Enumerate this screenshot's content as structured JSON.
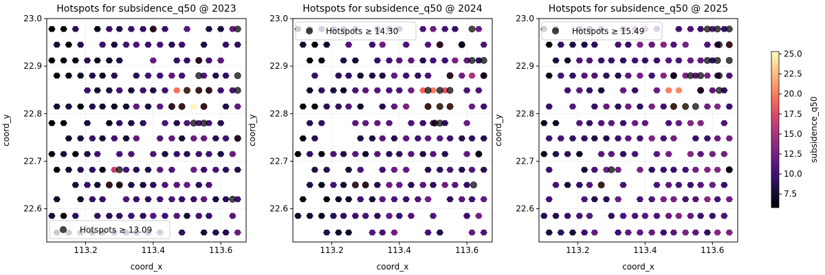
{
  "chart_data": [
    {
      "type": "hexbin",
      "title": "Hotspots for subsidence_q50 @ 2023",
      "xlabel": "coord_x",
      "ylabel": "coord_y",
      "xlim": [
        113.085,
        113.675
      ],
      "ylim": [
        22.53,
        23.0
      ],
      "xticks": [
        113.2,
        113.4,
        113.6
      ],
      "xtick_labels": [
        "113.2",
        "113.4",
        "113.6"
      ],
      "yticks": [
        22.6,
        22.7,
        22.8,
        22.9,
        23.0
      ],
      "ytick_labels": [
        "22.6",
        "22.7",
        "22.8",
        "22.9",
        "23.0"
      ],
      "grid": true,
      "legend": {
        "label": "Hotspots ≥ 13.09",
        "placement": "lower-left"
      },
      "hotspot_threshold": 13.09,
      "seed": 11,
      "base_level": 9.8,
      "hot_cells": [
        {
          "x": 113.47,
          "y": 22.849,
          "v": 19.5
        },
        {
          "x": 113.5,
          "y": 22.849,
          "v": 21.0
        },
        {
          "x": 113.535,
          "y": 22.849,
          "v": 18.5
        },
        {
          "x": 113.565,
          "y": 22.849,
          "v": 17.0
        },
        {
          "x": 113.63,
          "y": 22.849,
          "v": 15.0
        },
        {
          "x": 113.455,
          "y": 22.815,
          "v": 16.5
        },
        {
          "x": 113.485,
          "y": 22.815,
          "v": 18.0
        },
        {
          "x": 113.52,
          "y": 22.815,
          "v": 25.0
        },
        {
          "x": 113.55,
          "y": 22.815,
          "v": 17.0
        },
        {
          "x": 113.52,
          "y": 22.78,
          "v": 16.0
        },
        {
          "x": 113.55,
          "y": 22.78,
          "v": 15.5
        },
        {
          "x": 113.535,
          "y": 22.912,
          "v": 14.5
        },
        {
          "x": 113.65,
          "y": 22.88,
          "v": 14.8
        },
        {
          "x": 113.285,
          "y": 22.682,
          "v": 16.5
        },
        {
          "x": 113.27,
          "y": 22.65,
          "v": 17.0
        },
        {
          "x": 113.3,
          "y": 22.65,
          "v": 14.0
        },
        {
          "x": 113.65,
          "y": 22.748,
          "v": 14.0
        },
        {
          "x": 113.635,
          "y": 22.62,
          "v": 14.2
        },
        {
          "x": 113.4,
          "y": 22.978,
          "v": 14.0
        },
        {
          "x": 113.65,
          "y": 22.978,
          "v": 14.5
        }
      ],
      "hotspots_xy": [
        [
          113.4,
          22.978
        ],
        [
          113.65,
          22.978
        ],
        [
          113.535,
          22.912
        ],
        [
          113.535,
          22.88
        ],
        [
          113.65,
          22.88
        ],
        [
          113.5,
          22.849
        ],
        [
          113.535,
          22.849
        ],
        [
          113.565,
          22.849
        ],
        [
          113.65,
          22.849
        ],
        [
          113.455,
          22.815
        ],
        [
          113.485,
          22.815
        ],
        [
          113.55,
          22.815
        ],
        [
          113.52,
          22.78
        ],
        [
          113.55,
          22.78
        ],
        [
          113.65,
          22.748
        ],
        [
          113.3,
          22.682
        ],
        [
          113.27,
          22.65
        ],
        [
          113.3,
          22.65
        ],
        [
          113.635,
          22.62
        ]
      ]
    },
    {
      "type": "hexbin",
      "title": "Hotspots for subsidence_q50 @ 2024",
      "xlabel": "coord_x",
      "ylabel": "coord_y",
      "xlim": [
        113.085,
        113.675
      ],
      "ylim": [
        22.53,
        23.0
      ],
      "xticks": [
        113.2,
        113.4,
        113.6
      ],
      "xtick_labels": [
        "113.2",
        "113.4",
        "113.6"
      ],
      "yticks": [
        22.6,
        22.7,
        22.8,
        22.9,
        23.0
      ],
      "ytick_labels": [
        "22.6",
        "22.7",
        "22.8",
        "22.9",
        "23.0"
      ],
      "grid": true,
      "legend": {
        "label": "Hotspots ≥ 14.30",
        "placement": "upper-left"
      },
      "hotspot_threshold": 14.3,
      "seed": 23,
      "base_level": 10.5,
      "hot_cells": [
        {
          "x": 113.47,
          "y": 22.849,
          "v": 19.0
        },
        {
          "x": 113.5,
          "y": 22.849,
          "v": 20.0
        },
        {
          "x": 113.535,
          "y": 22.849,
          "v": 18.0
        },
        {
          "x": 113.565,
          "y": 22.849,
          "v": 17.5
        },
        {
          "x": 113.485,
          "y": 22.815,
          "v": 18.5
        },
        {
          "x": 113.52,
          "y": 22.815,
          "v": 22.0
        },
        {
          "x": 113.55,
          "y": 22.815,
          "v": 20.0
        },
        {
          "x": 113.52,
          "y": 22.78,
          "v": 16.5
        },
        {
          "x": 113.55,
          "y": 22.88,
          "v": 15.5
        },
        {
          "x": 113.615,
          "y": 22.88,
          "v": 15.0
        },
        {
          "x": 113.65,
          "y": 22.912,
          "v": 18.0
        },
        {
          "x": 113.27,
          "y": 22.65,
          "v": 18.5
        },
        {
          "x": 113.3,
          "y": 22.65,
          "v": 16.0
        },
        {
          "x": 113.62,
          "y": 22.65,
          "v": 15.2
        },
        {
          "x": 113.615,
          "y": 22.978,
          "v": 16.0
        },
        {
          "x": 113.52,
          "y": 22.945,
          "v": 15.0
        }
      ],
      "hotspots_xy": [
        [
          113.615,
          22.978
        ],
        [
          113.52,
          22.945
        ],
        [
          113.585,
          22.945
        ],
        [
          113.615,
          22.912
        ],
        [
          113.65,
          22.912
        ],
        [
          113.55,
          22.88
        ],
        [
          113.65,
          22.88
        ],
        [
          113.485,
          22.849
        ],
        [
          113.52,
          22.849
        ],
        [
          113.55,
          22.849
        ],
        [
          113.485,
          22.815
        ],
        [
          113.52,
          22.815
        ],
        [
          113.55,
          22.815
        ],
        [
          113.505,
          22.78
        ],
        [
          113.52,
          22.78
        ],
        [
          113.635,
          22.715
        ],
        [
          113.27,
          22.65
        ],
        [
          113.3,
          22.65
        ],
        [
          113.62,
          22.65
        ]
      ]
    },
    {
      "type": "hexbin",
      "title": "Hotspots for subsidence_q50 @ 2025",
      "xlabel": "coord_x",
      "ylabel": "coord_y",
      "xlim": [
        113.085,
        113.675
      ],
      "ylim": [
        22.53,
        23.0
      ],
      "xticks": [
        113.2,
        113.4,
        113.6
      ],
      "xtick_labels": [
        "113.2",
        "113.4",
        "113.6"
      ],
      "yticks": [
        22.6,
        22.7,
        22.8,
        22.9,
        23.0
      ],
      "ytick_labels": [
        "22.6",
        "22.7",
        "22.8",
        "22.9",
        "23.0"
      ],
      "grid": true,
      "legend": {
        "label": "Hotspots ≥ 15.49",
        "placement": "upper-left"
      },
      "hotspot_threshold": 15.49,
      "seed": 37,
      "base_level": 11.2,
      "hot_cells": [
        {
          "x": 113.47,
          "y": 22.849,
          "v": 20.0
        },
        {
          "x": 113.5,
          "y": 22.849,
          "v": 20.5
        },
        {
          "x": 113.535,
          "y": 22.849,
          "v": 19.0
        },
        {
          "x": 113.485,
          "y": 22.815,
          "v": 19.5
        },
        {
          "x": 113.52,
          "y": 22.815,
          "v": 23.0
        },
        {
          "x": 113.55,
          "y": 22.815,
          "v": 21.0
        },
        {
          "x": 113.535,
          "y": 22.88,
          "v": 17.0
        },
        {
          "x": 113.65,
          "y": 22.945,
          "v": 18.0
        },
        {
          "x": 113.65,
          "y": 22.912,
          "v": 17.0
        },
        {
          "x": 113.27,
          "y": 22.65,
          "v": 19.5
        },
        {
          "x": 113.3,
          "y": 22.65,
          "v": 17.0
        },
        {
          "x": 113.27,
          "y": 22.682,
          "v": 16.5
        },
        {
          "x": 113.585,
          "y": 22.912,
          "v": 16.0
        }
      ],
      "hotspots_xy": [
        [
          113.585,
          22.978
        ],
        [
          113.615,
          22.978
        ],
        [
          113.65,
          22.978
        ],
        [
          113.62,
          22.945
        ],
        [
          113.65,
          22.945
        ],
        [
          113.585,
          22.912
        ],
        [
          113.615,
          22.912
        ],
        [
          113.65,
          22.912
        ],
        [
          113.485,
          22.88
        ],
        [
          113.535,
          22.88
        ],
        [
          113.565,
          22.88
        ],
        [
          113.62,
          22.88
        ],
        [
          113.565,
          22.849
        ],
        [
          113.62,
          22.849
        ],
        [
          113.485,
          22.815
        ],
        [
          113.52,
          22.815
        ],
        [
          113.55,
          22.815
        ],
        [
          113.3,
          22.682
        ],
        [
          113.65,
          22.682
        ],
        [
          113.27,
          22.65
        ]
      ]
    }
  ],
  "colorbar": {
    "label": "subsidence_q50",
    "colormap": "magma",
    "vmin": 5.8,
    "vmax": 25.3,
    "ticks": [
      7.5,
      10.0,
      12.5,
      15.0,
      17.5,
      20.0,
      22.5,
      25.0
    ],
    "tick_labels": [
      "7.5",
      "10.0",
      "12.5",
      "15.0",
      "17.5",
      "20.0",
      "22.5",
      "25.0"
    ]
  },
  "colors": {
    "hotspot_marker": "#000000",
    "grid": "#dcdcdc",
    "hex_edge": "#bbbbbb"
  }
}
